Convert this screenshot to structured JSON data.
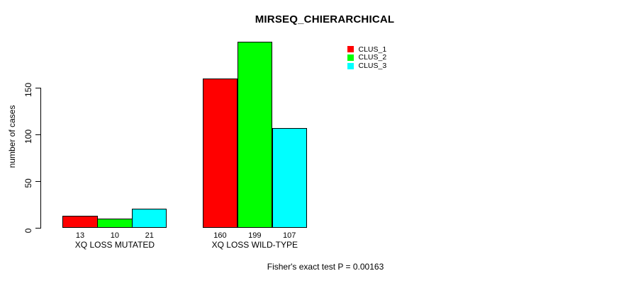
{
  "title": "MIRSEQ_CHIERARCHICAL",
  "footer": "Fisher's exact test P = 0.00163",
  "colors": {
    "clus_1": "#ff0000",
    "clus_2": "#00ff00",
    "clus_3": "#00ffff",
    "axis": "#000000",
    "background": "#ffffff"
  },
  "chart_data": {
    "type": "bar",
    "title": "MIRSEQ_CHIERARCHICAL",
    "xlabel": "",
    "ylabel": "number of cases",
    "categories": [
      "XQ LOSS MUTATED",
      "XQ LOSS WILD-TYPE"
    ],
    "series": [
      {
        "name": "CLUS_1",
        "color": "#ff0000",
        "values": [
          13,
          160
        ]
      },
      {
        "name": "CLUS_2",
        "color": "#00ff00",
        "values": [
          10,
          199
        ]
      },
      {
        "name": "CLUS_3",
        "color": "#00ffff",
        "values": [
          21,
          107
        ]
      }
    ],
    "bar_value_labels": [
      [
        13,
        10,
        21
      ],
      [
        160,
        199,
        107
      ]
    ],
    "yticks": [
      0,
      50,
      100,
      150
    ],
    "ylim": [
      0,
      199
    ],
    "grid": false,
    "legend_position": "top-right",
    "legend_entries": [
      "CLUS_1",
      "CLUS_2",
      "CLUS_3"
    ],
    "annotation": "Fisher's exact test P = 0.00163"
  }
}
